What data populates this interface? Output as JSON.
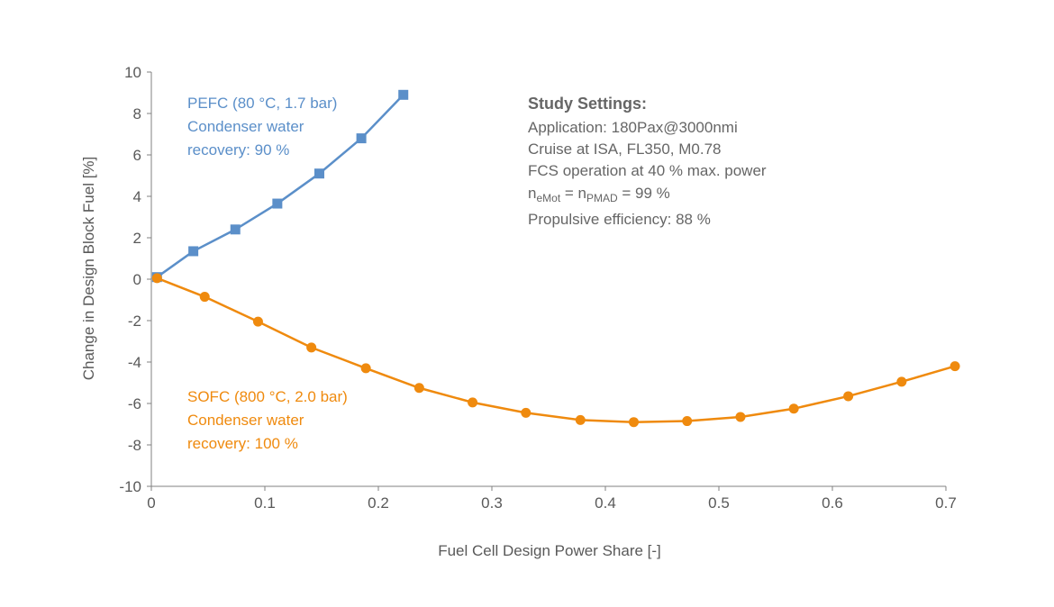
{
  "chart_data": {
    "type": "line",
    "xlabel": "Fuel Cell Design Power Share [-]",
    "ylabel": "Change in Design Block Fuel [%]",
    "xlim": [
      0,
      0.7
    ],
    "ylim": [
      -10,
      10
    ],
    "x_ticks": [
      0,
      0.1,
      0.2,
      0.3,
      0.4,
      0.5,
      0.6,
      0.7
    ],
    "x_tick_labels": [
      "0",
      "0.1",
      "0.2",
      "0.3",
      "0.4",
      "0.5",
      "0.6",
      "0.7"
    ],
    "y_ticks": [
      10,
      8,
      6,
      4,
      2,
      0,
      -2,
      -4,
      -6,
      -8,
      -10
    ],
    "y_tick_labels": [
      "10",
      "8",
      "6",
      "4",
      "2",
      "0",
      "-2",
      "-4",
      "-6",
      "-8",
      "-10"
    ],
    "grid": false,
    "series": [
      {
        "key": "pefc",
        "color": "#5b8fc9",
        "marker": "square",
        "x": [
          0.005,
          0.037,
          0.074,
          0.111,
          0.148,
          0.185,
          0.222
        ],
        "y": [
          0.1,
          1.35,
          2.4,
          3.65,
          5.1,
          6.8,
          8.9
        ]
      },
      {
        "key": "sofc",
        "color": "#ef8a0e",
        "marker": "circle",
        "x": [
          0.005,
          0.047,
          0.094,
          0.141,
          0.189,
          0.236,
          0.283,
          0.33,
          0.378,
          0.425,
          0.472,
          0.519,
          0.566,
          0.614,
          0.661,
          0.708
        ],
        "y": [
          0.05,
          -0.85,
          -2.05,
          -3.3,
          -4.3,
          -5.25,
          -5.95,
          -6.45,
          -6.8,
          -6.9,
          -6.85,
          -6.65,
          -6.25,
          -5.65,
          -4.95,
          -4.2
        ]
      }
    ],
    "annotations": {
      "pefc": [
        "PEFC (80 °C, 1.7 bar)",
        "Condenser water",
        "recovery: 90 %"
      ],
      "sofc": [
        "SOFC (800 °C, 2.0 bar)",
        "Condenser water",
        "recovery: 100 %"
      ]
    },
    "study_settings": {
      "title": "Study Settings:",
      "lines": [
        "Application: 180Pax@3000nmi",
        "Cruise at ISA, FL350, M0.78",
        "FCS operation at 40 % max. power"
      ],
      "efficiency_line": {
        "n1": "n",
        "sub1": "eMot",
        "eq": " = ",
        "n2": "n",
        "sub2": "PMAD",
        "value": " = 99 %"
      },
      "last_line": "Propulsive efficiency: 88 %"
    }
  }
}
